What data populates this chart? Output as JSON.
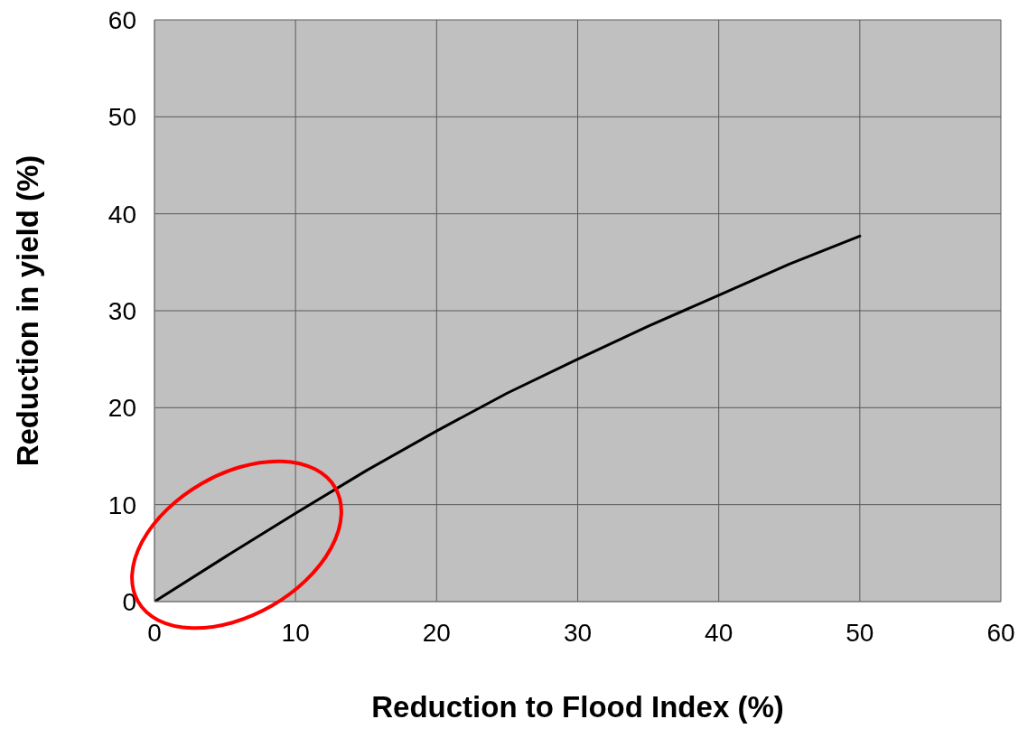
{
  "chart_data": {
    "type": "line",
    "xlabel": "Reduction to Flood Index (%)",
    "ylabel": "Reduction in yield  (%)",
    "x": [
      0,
      5,
      10,
      15,
      20,
      25,
      30,
      35,
      40,
      45,
      50
    ],
    "series": [
      {
        "color": "#000000",
        "values": [
          0,
          4.6,
          9.1,
          13.5,
          17.6,
          21.5,
          25.0,
          28.4,
          31.6,
          34.8,
          37.7
        ]
      }
    ],
    "xlim": [
      0,
      60
    ],
    "ylim": [
      0,
      60
    ],
    "xticks": [
      0,
      10,
      20,
      30,
      40,
      50,
      60
    ],
    "yticks": [
      0,
      10,
      20,
      30,
      40,
      50,
      60
    ],
    "grid": true,
    "marker": "none",
    "line_style": "solid"
  }
}
